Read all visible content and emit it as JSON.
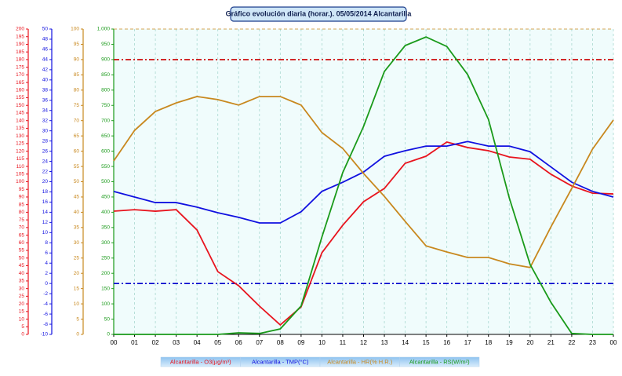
{
  "chart_data": {
    "type": "line",
    "title": "Gráfico evolución diaria (horar.). 05/05/2014 Alcantarilla",
    "categories": [
      "00",
      "01",
      "02",
      "03",
      "04",
      "05",
      "06",
      "07",
      "08",
      "09",
      "10",
      "11",
      "12",
      "13",
      "14",
      "15",
      "16",
      "17",
      "18",
      "19",
      "20",
      "21",
      "22",
      "23",
      "00"
    ],
    "series": [
      {
        "name": "Alcantarilla - O3(µg/m³)",
        "color": "#e8141e",
        "axis": "y",
        "values": [
          80.7,
          81.7,
          80.7,
          81.7,
          68.4,
          41.1,
          31.9,
          18.5,
          6.2,
          18.0,
          53.5,
          71.5,
          86.9,
          95.6,
          112.1,
          116.7,
          126.0,
          122.4,
          120.3,
          116.2,
          114.7,
          104.9,
          97.2,
          92.5,
          92.0
        ]
      },
      {
        "name": "Alcantarilla - TMP(°C)",
        "color": "#1010e0",
        "axis": "y2",
        "values": [
          18.1,
          17.0,
          15.9,
          15.9,
          15.0,
          13.9,
          13.0,
          11.9,
          11.9,
          14.1,
          18.1,
          19.9,
          21.9,
          25.0,
          26.1,
          27.0,
          27.0,
          27.9,
          27.0,
          27.0,
          25.9,
          22.9,
          19.9,
          18.1,
          17.0
        ]
      },
      {
        "name": "Alcantarilla - HR(% H.R.)",
        "color": "#c8881e",
        "axis": "y3",
        "values": [
          56.8,
          66.8,
          73.0,
          75.8,
          77.9,
          76.9,
          75.1,
          77.9,
          77.9,
          75.1,
          66.1,
          60.9,
          52.7,
          45.2,
          37.0,
          29.0,
          27.0,
          25.2,
          25.2,
          23.1,
          21.9,
          35.2,
          47.8,
          60.7,
          70.2
        ]
      },
      {
        "name": "Alcantarilla - RS(W/m²)",
        "color": "#1a9a1a",
        "axis": "y4",
        "values": [
          0,
          0,
          0,
          0,
          0,
          0,
          5,
          3,
          18,
          93,
          319,
          530,
          681,
          861,
          946,
          974,
          943,
          851,
          704,
          447,
          229,
          105,
          3,
          0,
          0
        ]
      }
    ],
    "reference_lines": [
      {
        "axis": "y",
        "value": 180,
        "color": "#cc0000"
      },
      {
        "axis": "y2",
        "value": 0,
        "color": "#0000cc"
      }
    ],
    "ylim": [
      0,
      200
    ],
    "yticks": [
      0,
      5,
      10,
      15,
      20,
      25,
      30,
      35,
      40,
      45,
      50,
      55,
      60,
      65,
      70,
      75,
      80,
      85,
      90,
      95,
      100,
      105,
      110,
      115,
      120,
      125,
      130,
      135,
      140,
      145,
      150,
      155,
      160,
      165,
      170,
      175,
      180,
      185,
      190,
      195,
      200
    ],
    "y2lim": [
      -10,
      50
    ],
    "y2ticks": [
      -10,
      -8,
      -6,
      -4,
      -2,
      0,
      2,
      4,
      6,
      8,
      10,
      12,
      14,
      16,
      18,
      20,
      22,
      24,
      26,
      28,
      30,
      32,
      34,
      36,
      38,
      40,
      42,
      44,
      46,
      48,
      50
    ],
    "y3lim": [
      0,
      100
    ],
    "y3ticks": [
      0,
      5,
      10,
      15,
      20,
      25,
      30,
      35,
      40,
      45,
      50,
      55,
      60,
      65,
      70,
      75,
      80,
      85,
      90,
      95,
      100
    ],
    "y4lim": [
      0,
      1000
    ],
    "y4ticks": [
      0,
      50,
      100,
      150,
      200,
      250,
      300,
      350,
      400,
      450,
      500,
      550,
      600,
      650,
      700,
      750,
      800,
      850,
      900,
      950,
      {
        "value": 1000,
        "label": "1.000"
      }
    ],
    "grid": true
  }
}
